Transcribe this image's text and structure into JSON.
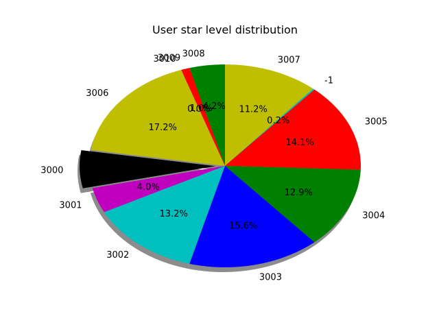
{
  "chart_data": {
    "type": "pie",
    "title": "User star level distribution",
    "slices": [
      {
        "label": "3007",
        "value": 11.2,
        "pct_label": "11.2%",
        "color": "#bfbf00"
      },
      {
        "label": "-1",
        "value": 0.2,
        "pct_label": "0.2%",
        "color": "#00bfbf"
      },
      {
        "label": "3005",
        "value": 14.1,
        "pct_label": "14.1%",
        "color": "#ff0000"
      },
      {
        "label": "3004",
        "value": 12.9,
        "pct_label": "12.9%",
        "color": "#008000"
      },
      {
        "label": "3003",
        "value": 15.6,
        "pct_label": "15.6%",
        "color": "#0000ff"
      },
      {
        "label": "3002",
        "value": 13.2,
        "pct_label": "13.2%",
        "color": "#00bfbf"
      },
      {
        "label": "3001",
        "value": 4.0,
        "pct_label": "4.0%",
        "color": "#bf00bf"
      },
      {
        "label": "3000",
        "value": 6.0,
        "pct_label": "",
        "color": "#000000"
      },
      {
        "label": "3006",
        "value": 17.2,
        "pct_label": "17.2%",
        "color": "#bfbf00"
      },
      {
        "label": "3010",
        "value": 0.0,
        "pct_label": "0.0%",
        "color": "#00bfbf"
      },
      {
        "label": "3009",
        "value": 1.0,
        "pct_label": "1.0%",
        "color": "#ff0000"
      },
      {
        "label": "3008",
        "value": 4.2,
        "pct_label": "4.2%",
        "color": "#008000"
      }
    ],
    "start_angle_deg": 90,
    "direction": "clockwise",
    "shadow": true,
    "explode_label": "3000"
  }
}
